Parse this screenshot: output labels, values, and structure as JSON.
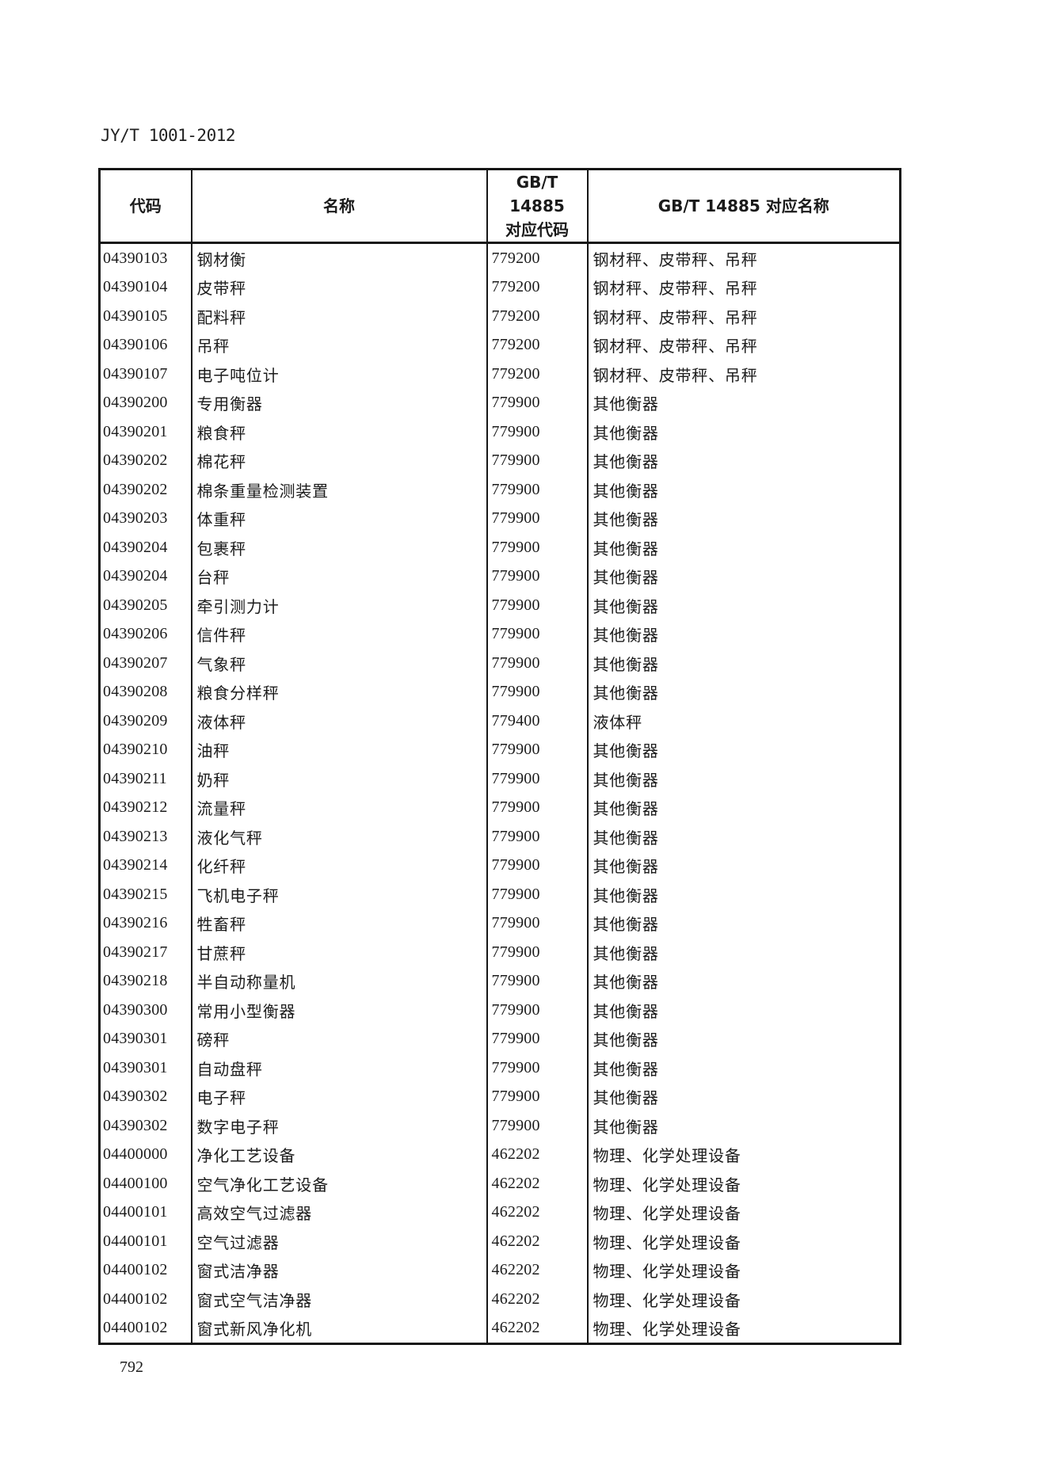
{
  "page": {
    "doc_code": "JY/T 1001-2012",
    "page_number": "792"
  },
  "table": {
    "col_headers": {
      "code": "代码",
      "name": "名称",
      "gbt_code_line1": "GB/T 14885",
      "gbt_code_line2": "对应代码",
      "gbt_name": "GB/T 14885 对应名称"
    },
    "rows": [
      [
        "04390103",
        "钢材衡",
        "779200",
        "钢材秤、皮带秤、吊秤"
      ],
      [
        "04390104",
        "皮带秤",
        "779200",
        "钢材秤、皮带秤、吊秤"
      ],
      [
        "04390105",
        "配料秤",
        "779200",
        "钢材秤、皮带秤、吊秤"
      ],
      [
        "04390106",
        "吊秤",
        "779200",
        "钢材秤、皮带秤、吊秤"
      ],
      [
        "04390107",
        "电子吨位计",
        "779200",
        "钢材秤、皮带秤、吊秤"
      ],
      [
        "04390200",
        "专用衡器",
        "779900",
        "其他衡器"
      ],
      [
        "04390201",
        "粮食秤",
        "779900",
        "其他衡器"
      ],
      [
        "04390202",
        "棉花秤",
        "779900",
        "其他衡器"
      ],
      [
        "04390202",
        "棉条重量检测装置",
        "779900",
        "其他衡器"
      ],
      [
        "04390203",
        "体重秤",
        "779900",
        "其他衡器"
      ],
      [
        "04390204",
        "包裹秤",
        "779900",
        "其他衡器"
      ],
      [
        "04390204",
        "台秤",
        "779900",
        "其他衡器"
      ],
      [
        "04390205",
        "牵引测力计",
        "779900",
        "其他衡器"
      ],
      [
        "04390206",
        "信件秤",
        "779900",
        "其他衡器"
      ],
      [
        "04390207",
        "气象秤",
        "779900",
        "其他衡器"
      ],
      [
        "04390208",
        "粮食分样秤",
        "779900",
        "其他衡器"
      ],
      [
        "04390209",
        "液体秤",
        "779400",
        "液体秤"
      ],
      [
        "04390210",
        "油秤",
        "779900",
        "其他衡器"
      ],
      [
        "04390211",
        "奶秤",
        "779900",
        "其他衡器"
      ],
      [
        "04390212",
        "流量秤",
        "779900",
        "其他衡器"
      ],
      [
        "04390213",
        "液化气秤",
        "779900",
        "其他衡器"
      ],
      [
        "04390214",
        "化纤秤",
        "779900",
        "其他衡器"
      ],
      [
        "04390215",
        "飞机电子秤",
        "779900",
        "其他衡器"
      ],
      [
        "04390216",
        "牲畜秤",
        "779900",
        "其他衡器"
      ],
      [
        "04390217",
        "甘蔗秤",
        "779900",
        "其他衡器"
      ],
      [
        "04390218",
        "半自动称量机",
        "779900",
        "其他衡器"
      ],
      [
        "04390300",
        "常用小型衡器",
        "779900",
        "其他衡器"
      ],
      [
        "04390301",
        "磅秤",
        "779900",
        "其他衡器"
      ],
      [
        "04390301",
        "自动盘秤",
        "779900",
        "其他衡器"
      ],
      [
        "04390302",
        "电子秤",
        "779900",
        "其他衡器"
      ],
      [
        "04390302",
        "数字电子秤",
        "779900",
        "其他衡器"
      ],
      [
        "04400000",
        "净化工艺设备",
        "462202",
        "物理、化学处理设备"
      ],
      [
        "04400100",
        "空气净化工艺设备",
        "462202",
        "物理、化学处理设备"
      ],
      [
        "04400101",
        "高效空气过滤器",
        "462202",
        "物理、化学处理设备"
      ],
      [
        "04400101",
        "空气过滤器",
        "462202",
        "物理、化学处理设备"
      ],
      [
        "04400102",
        "窗式洁净器",
        "462202",
        "物理、化学处理设备"
      ],
      [
        "04400102",
        "窗式空气洁净器",
        "462202",
        "物理、化学处理设备"
      ],
      [
        "04400102",
        "窗式新风净化机",
        "462202",
        "物理、化学处理设备"
      ]
    ]
  }
}
